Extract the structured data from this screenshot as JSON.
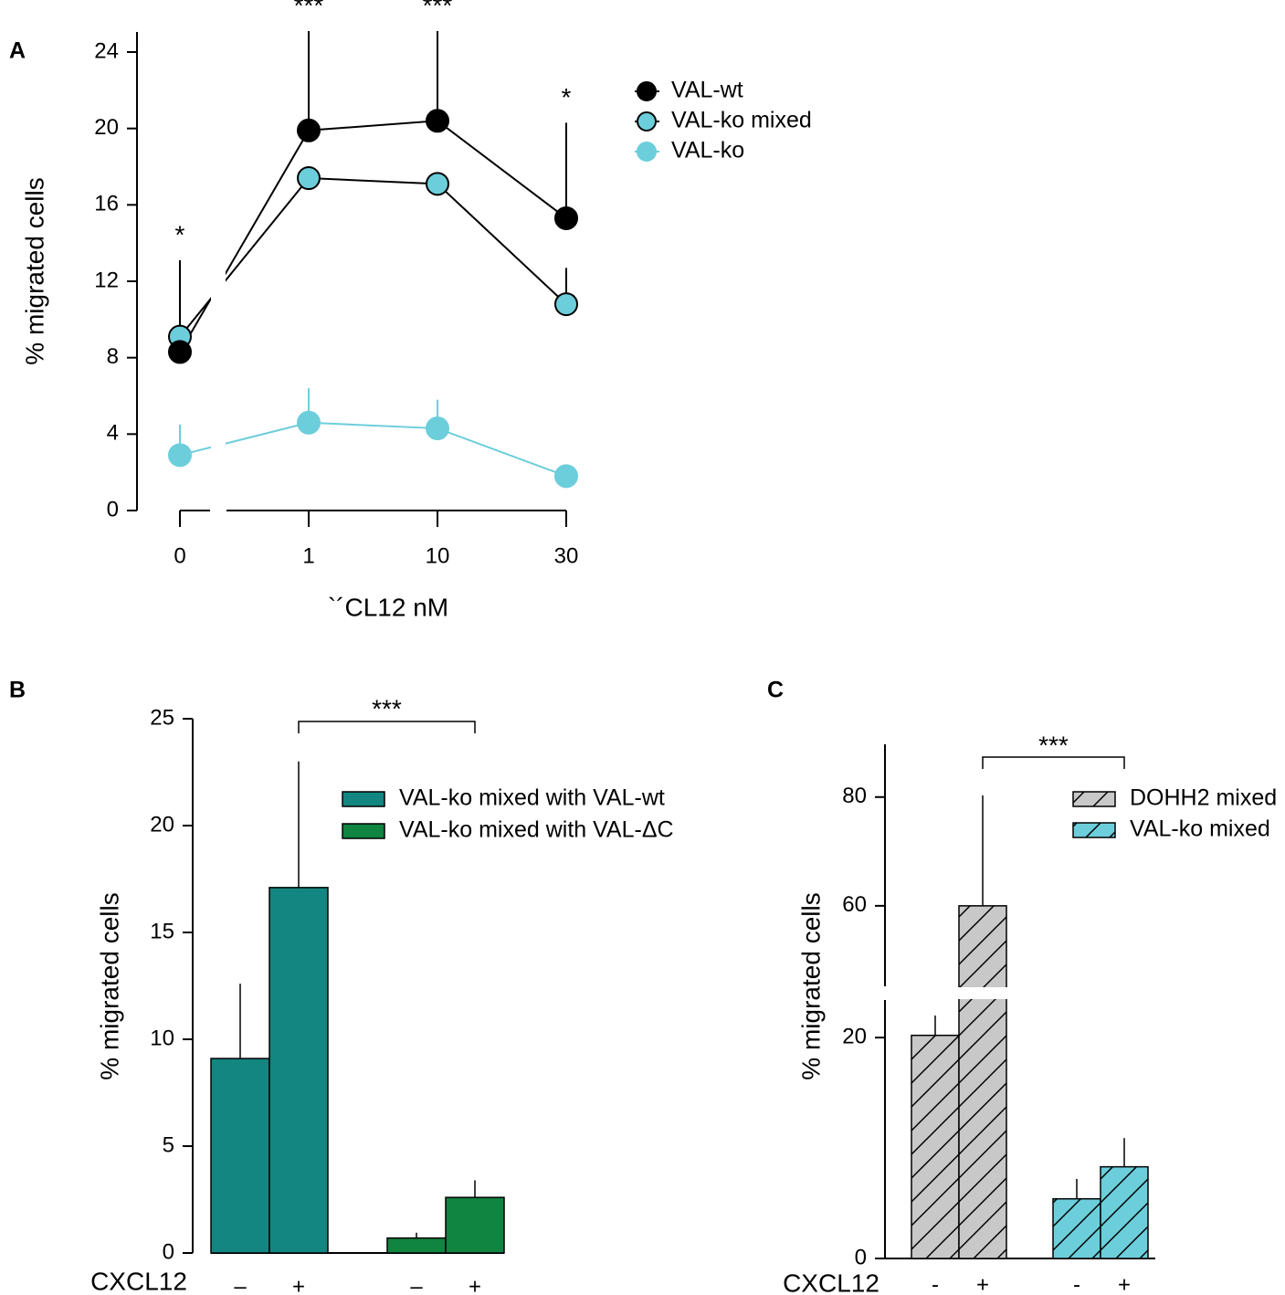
{
  "chart_data": [
    {
      "type": "line",
      "panel": "A",
      "xlabel": "`´CL12 nM",
      "ylabel": "% migrated cells",
      "categories": [
        "0",
        "1",
        "10",
        "30"
      ],
      "ylim": [
        0,
        24
      ],
      "yticks": [
        0,
        4,
        8,
        12,
        16,
        20,
        24
      ],
      "annotations": [
        "*",
        "***",
        "***",
        "*"
      ],
      "series": [
        {
          "name": "VAL-wt",
          "color": "#000000",
          "marker_color": "#000000",
          "edge_color": "#000000",
          "values": [
            8.3,
            19.9,
            20.4,
            15.3
          ],
          "errors": [
            4.8,
            5.2,
            4.7,
            5.0
          ]
        },
        {
          "name": "VAL-ko mixed",
          "color": "#000000",
          "marker_color": "#6ccedb",
          "edge_color": "#000000",
          "values": [
            9.1,
            17.4,
            17.1,
            10.8
          ],
          "errors": [
            null,
            null,
            null,
            1.9
          ]
        },
        {
          "name": "VAL-ko",
          "color": "#6ccedb",
          "marker_color": "#6ccedb",
          "edge_color": "#6ccedb",
          "values": [
            2.9,
            4.6,
            4.3,
            1.8
          ],
          "errors": [
            1.6,
            1.8,
            1.5,
            null
          ]
        }
      ]
    },
    {
      "type": "bar",
      "panel": "B",
      "ylabel": "% migrated cells",
      "row_label": "CXCL12",
      "categories": [
        "–",
        "+"
      ],
      "significance": "***",
      "ylim": [
        0,
        25
      ],
      "yticks": [
        0,
        5,
        10,
        15,
        20,
        25
      ],
      "hatch": false,
      "series": [
        {
          "name": "VAL-ko mixed with VAL-wt",
          "color": "#138682",
          "values": [
            9.1,
            17.1
          ],
          "errors": [
            3.5,
            5.9
          ]
        },
        {
          "name": "VAL-ko mixed with VAL-ΔC",
          "color": "#108441",
          "values": [
            0.7,
            2.6
          ],
          "errors": [
            0.25,
            0.8
          ]
        }
      ]
    },
    {
      "type": "bar",
      "panel": "C",
      "ylabel": "% migrated cells",
      "row_label": "CXCL12",
      "categories": [
        "-",
        "+"
      ],
      "significance": "***",
      "ylim": [
        0,
        89.7
      ],
      "ybreak": [
        23.4,
        45.2
      ],
      "yticks": [
        0,
        20,
        60,
        80
      ],
      "hatch": true,
      "series": [
        {
          "name": "DOHH2 mixed",
          "color": "#c8c8c8",
          "values": [
            20.2,
            60
          ],
          "errors": [
            1.8,
            20.3
          ]
        },
        {
          "name": "VAL-ko mixed",
          "color": "#6ccedb",
          "values": [
            5.4,
            8.3
          ],
          "errors": [
            1.8,
            2.6
          ]
        }
      ]
    }
  ]
}
